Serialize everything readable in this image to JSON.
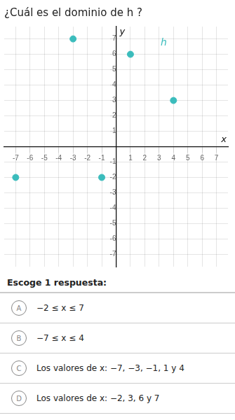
{
  "chart_data": {
    "type": "scatter",
    "title": "¿Cuál es el dominio de h ?",
    "x": [
      -3,
      1,
      4,
      -7,
      -1
    ],
    "values": [
      7,
      6,
      3,
      -2,
      -2
    ],
    "color": "#3BBCBC",
    "xlim": [
      -7.8,
      7.8
    ],
    "ylim": [
      -7.8,
      7.8
    ],
    "xticks": [
      -7,
      -6,
      -5,
      -4,
      -3,
      -2,
      -1,
      1,
      2,
      3,
      4,
      5,
      6,
      7
    ],
    "yticks": [
      -7,
      -6,
      -5,
      -4,
      -3,
      -2,
      -1,
      1,
      2,
      3,
      4,
      5,
      6,
      7
    ],
    "grid": true,
    "x_label": "x",
    "y_label": "y",
    "annotations": [
      {
        "text": "h",
        "x": 3.1,
        "y": 6.4,
        "color": "#3BBCBC"
      }
    ],
    "prompt": "Escoge 1 respuesta:",
    "choices": [
      {
        "label": "A",
        "text": "−2 ≤ x ≤ 7"
      },
      {
        "label": "B",
        "text": "−7 ≤ x ≤ 4"
      },
      {
        "label": "C",
        "text": "Los valores de x: −7, −3, −1, 1 y 4"
      },
      {
        "label": "D",
        "text": "Los valores de x: −2, 3, 6 y 7"
      }
    ]
  }
}
